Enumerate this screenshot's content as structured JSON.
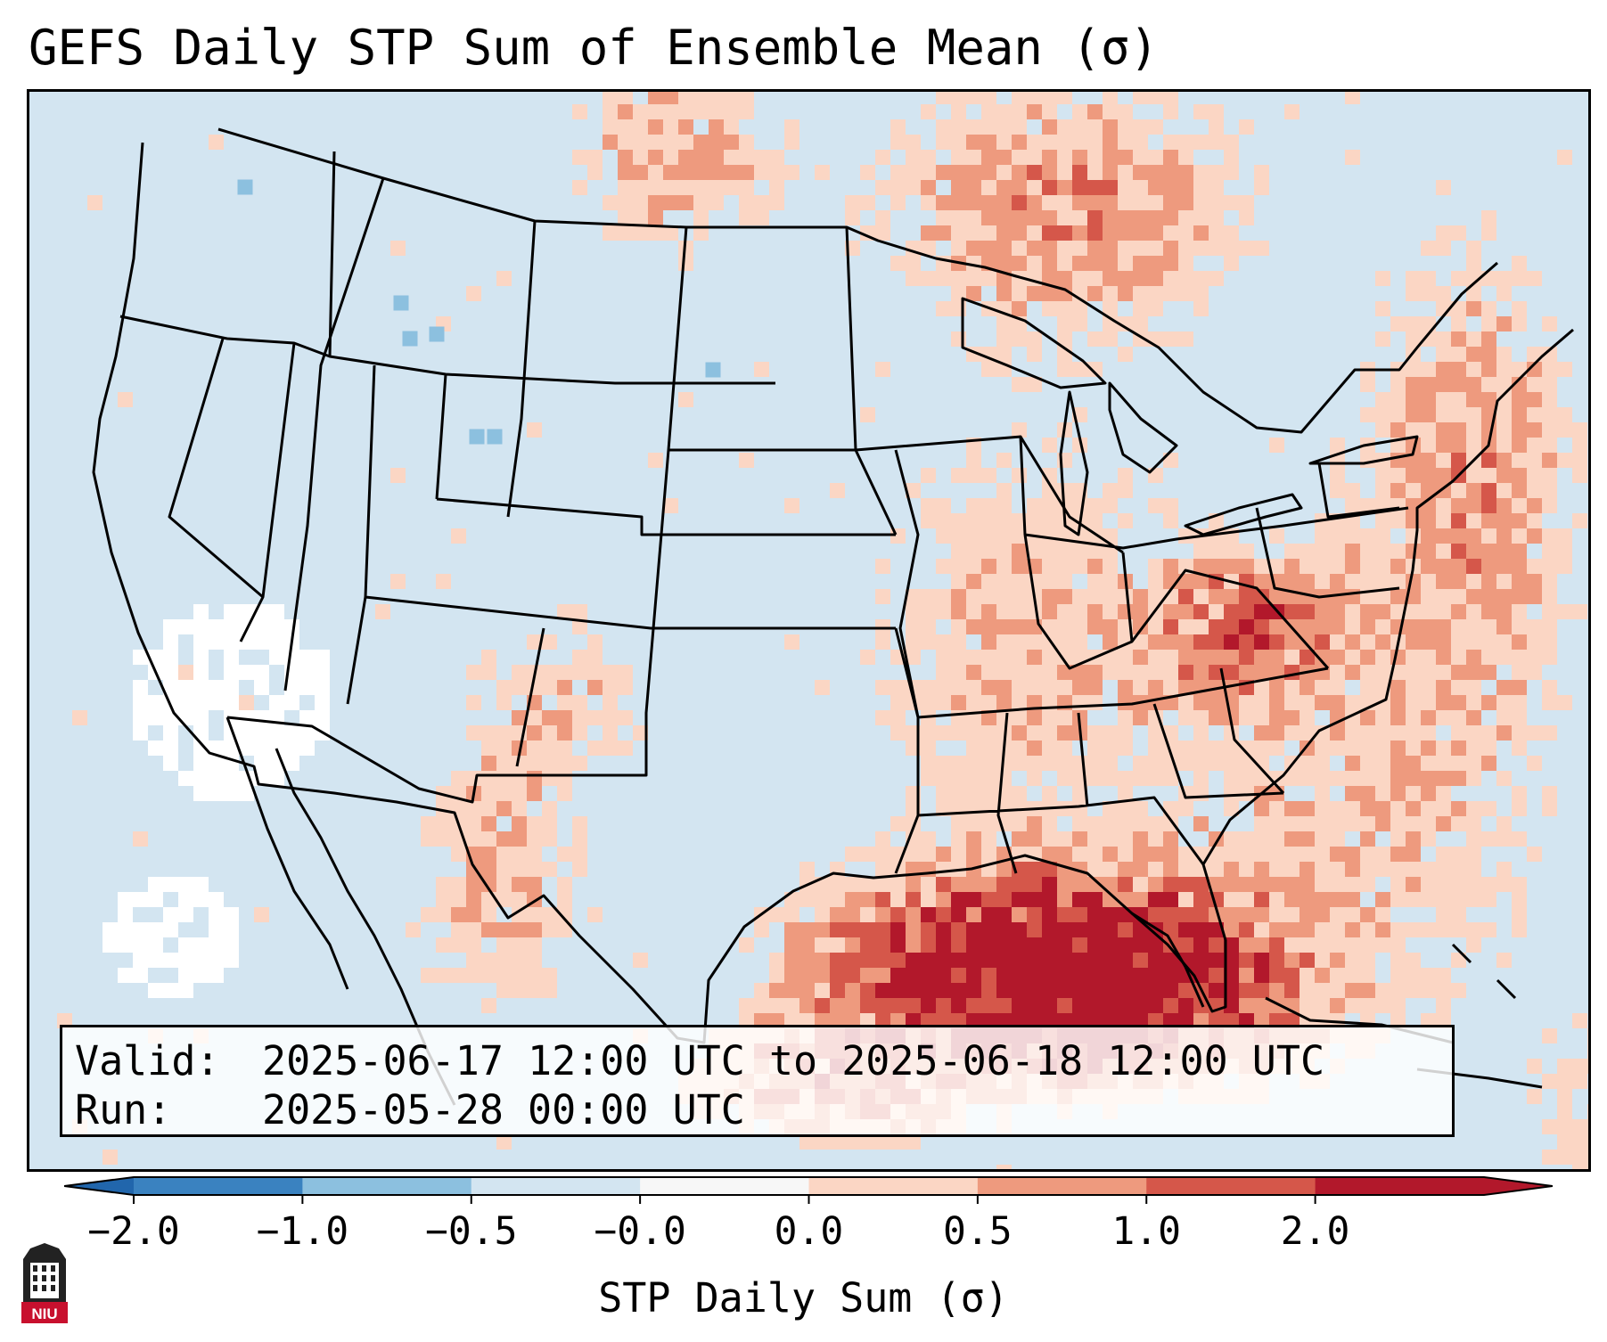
{
  "title": "GEFS Daily STP Sum of Ensemble Mean (σ)",
  "info": {
    "valid_label": "Valid:",
    "valid_value": "2025-06-17 12:00 UTC to 2025-06-18 12:00 UTC",
    "run_label": "Run:",
    "run_value": "2025-05-28 00:00 UTC"
  },
  "colorbar": {
    "label": "STP Daily Sum (σ)",
    "ticks": [
      "−2.0",
      "−1.0",
      "−0.5",
      "−0.0",
      "0.0",
      "0.5",
      "1.0",
      "2.0"
    ],
    "bin_colors": [
      "#3a82c0",
      "#8cc0df",
      "#d3e5f1",
      "#f7f7f7",
      "#fbd6c4",
      "#ee9a7e",
      "#d5574a",
      "#b2182b"
    ],
    "extend_colors": {
      "low": "#2166ac",
      "high": "#b2182b"
    }
  },
  "map_fill_colors": {
    "background": "#d3e5f1",
    "neutral": "#ffffff",
    "low_pos": "#fbd6c4",
    "mid_pos": "#ee9a7e",
    "high_pos": "#d5574a",
    "max_pos": "#b2182b",
    "low_neg": "#8cc0df"
  },
  "logo": {
    "text": "NIU",
    "color": "#c8102e"
  }
}
